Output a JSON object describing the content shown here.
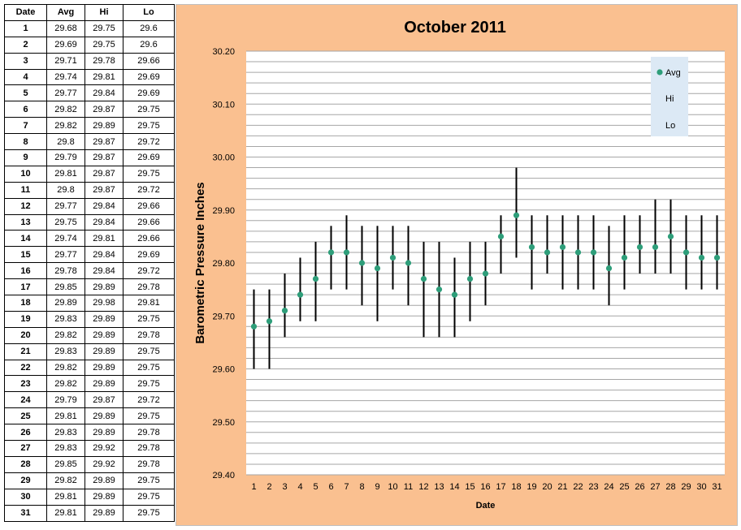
{
  "table": {
    "headers": [
      "Date",
      "Avg",
      "Hi",
      "Lo"
    ],
    "rows": [
      [
        "1",
        "29.68",
        "29.75",
        "29.6"
      ],
      [
        "2",
        "29.69",
        "29.75",
        "29.6"
      ],
      [
        "3",
        "29.71",
        "29.78",
        "29.66"
      ],
      [
        "4",
        "29.74",
        "29.81",
        "29.69"
      ],
      [
        "5",
        "29.77",
        "29.84",
        "29.69"
      ],
      [
        "6",
        "29.82",
        "29.87",
        "29.75"
      ],
      [
        "7",
        "29.82",
        "29.89",
        "29.75"
      ],
      [
        "8",
        "29.8",
        "29.87",
        "29.72"
      ],
      [
        "9",
        "29.79",
        "29.87",
        "29.69"
      ],
      [
        "10",
        "29.81",
        "29.87",
        "29.75"
      ],
      [
        "11",
        "29.8",
        "29.87",
        "29.72"
      ],
      [
        "12",
        "29.77",
        "29.84",
        "29.66"
      ],
      [
        "13",
        "29.75",
        "29.84",
        "29.66"
      ],
      [
        "14",
        "29.74",
        "29.81",
        "29.66"
      ],
      [
        "15",
        "29.77",
        "29.84",
        "29.69"
      ],
      [
        "16",
        "29.78",
        "29.84",
        "29.72"
      ],
      [
        "17",
        "29.85",
        "29.89",
        "29.78"
      ],
      [
        "18",
        "29.89",
        "29.98",
        "29.81"
      ],
      [
        "19",
        "29.83",
        "29.89",
        "29.75"
      ],
      [
        "20",
        "29.82",
        "29.89",
        "29.78"
      ],
      [
        "21",
        "29.83",
        "29.89",
        "29.75"
      ],
      [
        "22",
        "29.82",
        "29.89",
        "29.75"
      ],
      [
        "23",
        "29.82",
        "29.89",
        "29.75"
      ],
      [
        "24",
        "29.79",
        "29.87",
        "29.72"
      ],
      [
        "25",
        "29.81",
        "29.89",
        "29.75"
      ],
      [
        "26",
        "29.83",
        "29.89",
        "29.78"
      ],
      [
        "27",
        "29.83",
        "29.92",
        "29.78"
      ],
      [
        "28",
        "29.85",
        "29.92",
        "29.78"
      ],
      [
        "29",
        "29.82",
        "29.89",
        "29.75"
      ],
      [
        "30",
        "29.81",
        "29.89",
        "29.75"
      ],
      [
        "31",
        "29.81",
        "29.89",
        "29.75"
      ]
    ]
  },
  "chart_data": {
    "type": "scatter",
    "title": "October 2011",
    "xlabel": "Date",
    "ylabel": "Barometric Pressure Inches",
    "ylim": [
      29.4,
      30.2
    ],
    "ytick_labels": [
      "30.20",
      "30.10",
      "30.00",
      "29.90",
      "29.80",
      "29.70",
      "29.60",
      "29.50",
      "29.40"
    ],
    "yticks": [
      30.2,
      30.1,
      30.0,
      29.9,
      29.8,
      29.7,
      29.6,
      29.5,
      29.4
    ],
    "minor_gridline_step": 0.02,
    "grid": true,
    "legend_position": "top-right",
    "x": [
      1,
      2,
      3,
      4,
      5,
      6,
      7,
      8,
      9,
      10,
      11,
      12,
      13,
      14,
      15,
      16,
      17,
      18,
      19,
      20,
      21,
      22,
      23,
      24,
      25,
      26,
      27,
      28,
      29,
      30,
      31
    ],
    "series": [
      {
        "name": "Avg",
        "values": [
          29.68,
          29.69,
          29.71,
          29.74,
          29.77,
          29.82,
          29.82,
          29.8,
          29.79,
          29.81,
          29.8,
          29.77,
          29.75,
          29.74,
          29.77,
          29.78,
          29.85,
          29.89,
          29.83,
          29.82,
          29.83,
          29.82,
          29.82,
          29.79,
          29.81,
          29.83,
          29.83,
          29.85,
          29.82,
          29.81,
          29.81
        ]
      },
      {
        "name": "Hi",
        "values": [
          29.75,
          29.75,
          29.78,
          29.81,
          29.84,
          29.87,
          29.89,
          29.87,
          29.87,
          29.87,
          29.87,
          29.84,
          29.84,
          29.81,
          29.84,
          29.84,
          29.89,
          29.98,
          29.89,
          29.89,
          29.89,
          29.89,
          29.89,
          29.87,
          29.89,
          29.89,
          29.92,
          29.92,
          29.89,
          29.89,
          29.89
        ]
      },
      {
        "name": "Lo",
        "values": [
          29.6,
          29.6,
          29.66,
          29.69,
          29.69,
          29.75,
          29.75,
          29.72,
          29.69,
          29.75,
          29.72,
          29.66,
          29.66,
          29.66,
          29.69,
          29.72,
          29.78,
          29.81,
          29.75,
          29.78,
          29.75,
          29.75,
          29.75,
          29.72,
          29.75,
          29.78,
          29.78,
          29.78,
          29.75,
          29.75,
          29.75
        ]
      }
    ],
    "colors": {
      "avg_marker": "#2e9e7a",
      "range_line": "#000000",
      "plot_background": "#ffffff",
      "chart_background": "#fac090",
      "legend_background": "#dce9f5",
      "gridline": "#a6a6a6"
    }
  }
}
